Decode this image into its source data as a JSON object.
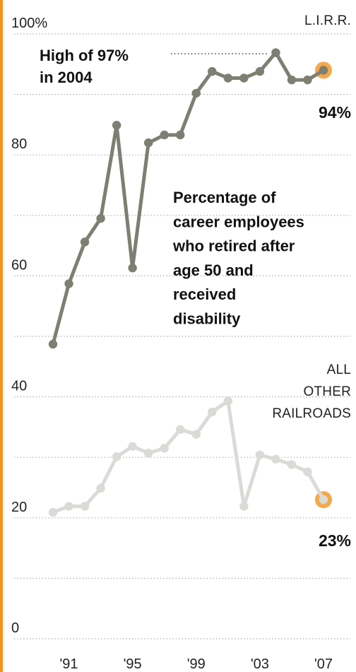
{
  "chart_data": {
    "type": "line",
    "title": "",
    "ylim": [
      0,
      100
    ],
    "x": [
      1990,
      1991,
      1992,
      1993,
      1994,
      1995,
      1996,
      1997,
      1998,
      1999,
      2000,
      2001,
      2002,
      2003,
      2004,
      2005,
      2006,
      2007
    ],
    "x_ticks": [
      {
        "value": 1991,
        "label": "'91"
      },
      {
        "value": 1995,
        "label": "'95"
      },
      {
        "value": 1999,
        "label": "'99"
      },
      {
        "value": 2003,
        "label": "'03"
      },
      {
        "value": 2007,
        "label": "'07"
      }
    ],
    "y_ticks": [
      {
        "value": 100,
        "label": "100%"
      },
      {
        "value": 80,
        "label": "80"
      },
      {
        "value": 60,
        "label": "60"
      },
      {
        "value": 40,
        "label": "40"
      },
      {
        "value": 20,
        "label": "20"
      },
      {
        "value": 0,
        "label": "0"
      }
    ],
    "gridlines": [
      0,
      10,
      20,
      30,
      40,
      50,
      60,
      70,
      80,
      90,
      100
    ],
    "grid": true,
    "series": [
      {
        "name": "L.I.R.R.",
        "color": "#7e7e72",
        "values": [
          48.7,
          58.7,
          65.6,
          69.5,
          84.9,
          61.3,
          82.0,
          83.3,
          83.3,
          90.2,
          93.8,
          92.7,
          92.7,
          93.8,
          96.9,
          92.4,
          92.4,
          94.0
        ],
        "end_label": "94%"
      },
      {
        "name": "ALL OTHER RAILROADS",
        "name_lines": [
          "ALL",
          "OTHER",
          "RAILROADS"
        ],
        "color": "#dadad6",
        "values": [
          20.9,
          21.9,
          21.9,
          24.9,
          30.1,
          31.8,
          30.7,
          31.5,
          34.6,
          33.8,
          37.5,
          39.3,
          21.9,
          30.4,
          29.7,
          28.8,
          27.6,
          23.0
        ],
        "end_label": "23%"
      }
    ],
    "annotations": [
      {
        "text_lines": [
          "High of 97%",
          "in 2004"
        ],
        "x": 2004,
        "y": 96.9
      },
      {
        "text_lines": [
          "Percentage of",
          "career employees",
          "who retired after",
          "age 50 and",
          "received",
          "disability"
        ]
      }
    ],
    "highlight_color": "#f5a84a",
    "accent_color": "#f39318"
  }
}
